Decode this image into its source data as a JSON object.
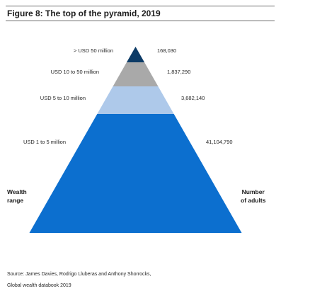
{
  "figure": {
    "title": "Figure 8: The top of the pyramid, 2019",
    "left_axis": [
      "Wealth",
      "range"
    ],
    "right_axis": [
      "Number",
      "of adults"
    ],
    "source": [
      "Source: James Davies, Rodrigo Lluberas and Anthony Shorrocks,",
      "Global wealth databook 2019"
    ]
  },
  "chart_data": {
    "type": "pyramid",
    "title": "Figure 8: The top of the pyramid, 2019",
    "xlabel": "Wealth range",
    "ylabel": "Number of adults",
    "categories": [
      {
        "range": "> USD 50 million",
        "adults": 168030,
        "adults_label": "168,030",
        "color": "#0d3b66"
      },
      {
        "range": "USD 10 to 50 million",
        "adults": 1837290,
        "adults_label": "1,837,290",
        "color": "#a9a9a9"
      },
      {
        "range": "USD 5 to 10 million",
        "adults": 3682140,
        "adults_label": "3,682,140",
        "color": "#aec9ea"
      },
      {
        "range": "USD 1 to 5 million",
        "adults": 41104790,
        "adults_label": "41,104,790",
        "color": "#0c6fcf"
      }
    ]
  }
}
